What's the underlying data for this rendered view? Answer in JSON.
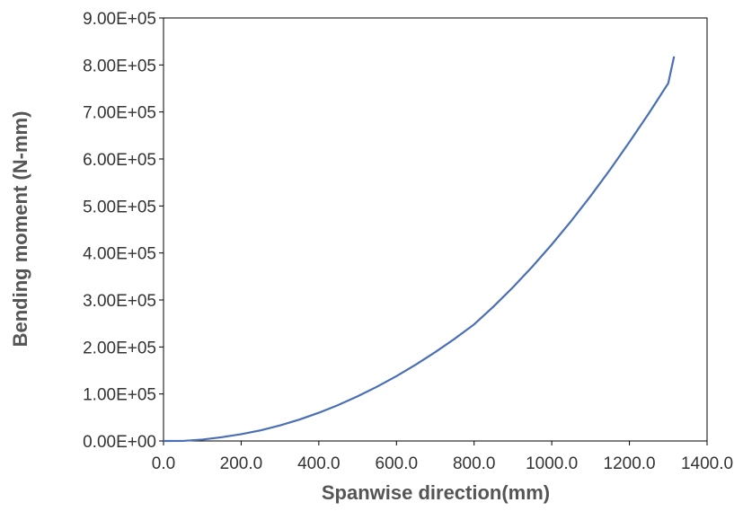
{
  "chart_data": {
    "type": "line",
    "title": "",
    "xlabel": "Spanwise direction(mm)",
    "ylabel": "Bending moment (N-mm)",
    "xlim": [
      0,
      1400
    ],
    "ylim": [
      0,
      900000
    ],
    "x_ticks": [
      "0.0",
      "200.0",
      "400.0",
      "600.0",
      "800.0",
      "1000.0",
      "1200.0",
      "1400.0"
    ],
    "y_ticks": [
      "0.00E+00",
      "1.00E+05",
      "2.00E+05",
      "3.00E+05",
      "4.00E+05",
      "5.00E+05",
      "6.00E+05",
      "7.00E+05",
      "8.00E+05",
      "9.00E+05"
    ],
    "grid": false,
    "legend": "none",
    "colors": {
      "line": "#4a6fb5",
      "axis": "#000000",
      "frame": "#000000"
    },
    "series": [
      {
        "x": [
          0,
          50,
          100,
          150,
          200,
          250,
          300,
          350,
          400,
          450,
          500,
          550,
          600,
          650,
          700,
          750,
          800,
          850,
          900,
          950,
          1000,
          1050,
          1100,
          1150,
          1200,
          1250,
          1300,
          1315
        ],
        "values": [
          0,
          100,
          3000,
          8000,
          14500,
          22500,
          33000,
          45500,
          60000,
          76500,
          95000,
          115500,
          138000,
          162500,
          189000,
          217500,
          248000,
          286000,
          327000,
          371000,
          418000,
          468000,
          521000,
          577000,
          636000,
          697000,
          761000,
          818000
        ]
      }
    ]
  }
}
